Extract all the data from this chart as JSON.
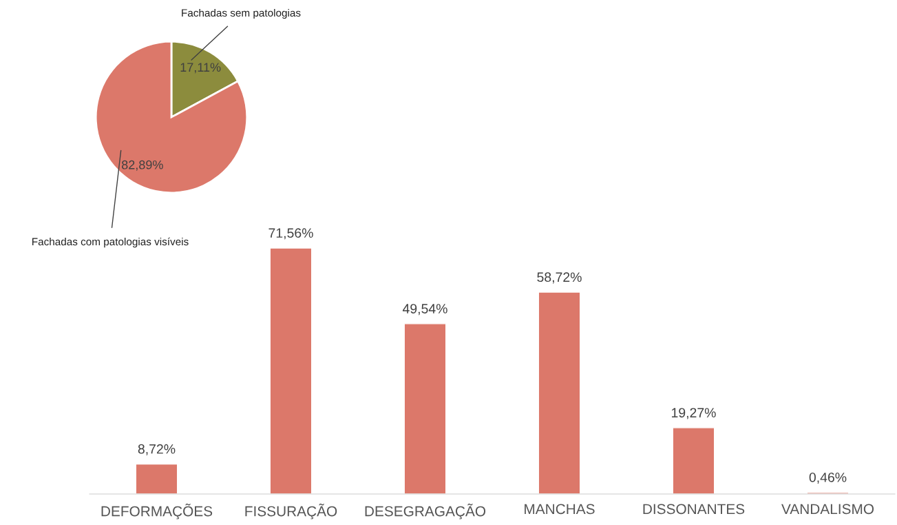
{
  "chart_data": [
    {
      "type": "pie",
      "categories": [
        "Fachadas sem patologias",
        "Fachadas com patologias visíveis"
      ],
      "values": [
        17.11,
        82.89
      ],
      "colors": [
        "#8c8c3d",
        "#dc786a"
      ],
      "value_labels": [
        "17,11%",
        "82,89%"
      ]
    },
    {
      "type": "bar",
      "categories": [
        "DEFORMAÇÕES",
        "FISSURAÇÃO",
        "DESEGRAGAÇÃO",
        "MANCHAS",
        "DISSONANTES",
        "VANDALISMO"
      ],
      "values": [
        8.72,
        71.56,
        49.54,
        58.72,
        19.27,
        0.46
      ],
      "color": "#dc786a",
      "value_labels": [
        "8,72%",
        "71,56%",
        "49,54%",
        "58,72%",
        "19,27%",
        "0,46%"
      ]
    }
  ]
}
